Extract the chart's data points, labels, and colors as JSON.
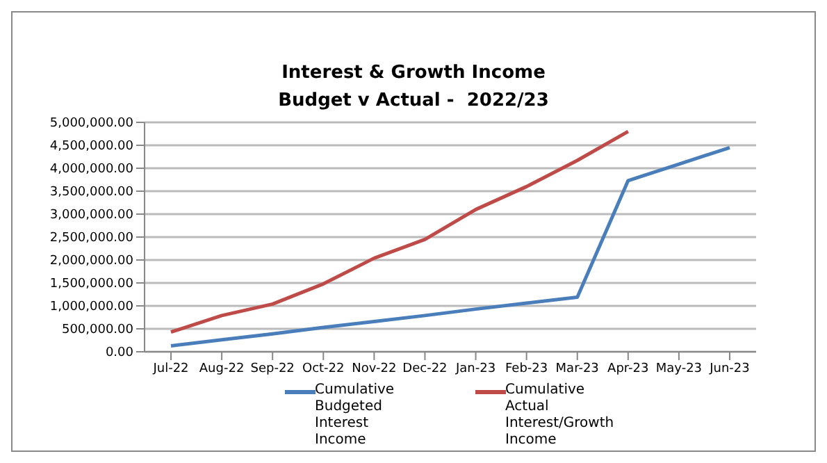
{
  "chart_data": {
    "type": "line",
    "title": "Interest & Growth Income",
    "subtitle": "Budget v Actual -  2022/23",
    "categories": [
      "Jul-22",
      "Aug-22",
      "Sep-22",
      "Oct-22",
      "Nov-22",
      "Dec-22",
      "Jan-23",
      "Feb-23",
      "Mar-23",
      "Apr-23",
      "May-23",
      "Jun-23"
    ],
    "series": [
      {
        "name": "Cumulative Budgeted Interest Income",
        "color": "#4a7ebb",
        "values": [
          130000,
          260000,
          390000,
          530000,
          660000,
          790000,
          930000,
          1060000,
          1190000,
          3730000,
          4090000,
          4450000
        ]
      },
      {
        "name": "Cumulative Actual Interest/Growth Income",
        "color": "#be4b48",
        "values": [
          430000,
          790000,
          1040000,
          1480000,
          2040000,
          2450000,
          3100000,
          3600000,
          4170000,
          4800000,
          null,
          null
        ]
      }
    ],
    "ylim": [
      0,
      5000000
    ],
    "yticks": [
      {
        "value": 0,
        "label": "0.00"
      },
      {
        "value": 500000,
        "label": "500,000.00"
      },
      {
        "value": 1000000,
        "label": "1,000,000.00"
      },
      {
        "value": 1500000,
        "label": "1,500,000.00"
      },
      {
        "value": 2000000,
        "label": "2,000,000.00"
      },
      {
        "value": 2500000,
        "label": "2,500,000.00"
      },
      {
        "value": 3000000,
        "label": "3,000,000.00"
      },
      {
        "value": 3500000,
        "label": "3,500,000.00"
      },
      {
        "value": 4000000,
        "label": "4,000,000.00"
      },
      {
        "value": 4500000,
        "label": "4,500,000.00"
      },
      {
        "value": 5000000,
        "label": "5,000,000.00"
      }
    ],
    "grid": "y",
    "legend": "bottom",
    "marker": "none",
    "line_style": "solid"
  }
}
